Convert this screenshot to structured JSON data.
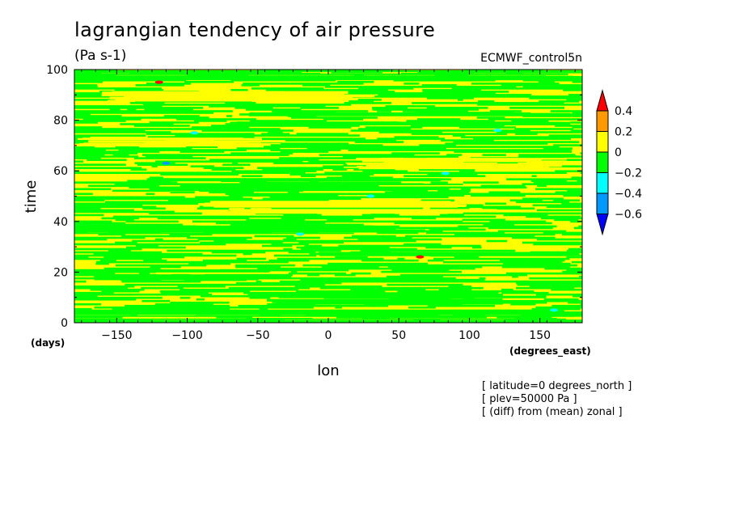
{
  "chart_data": {
    "type": "heatmap",
    "title": "lagrangian tendency of air pressure",
    "units": "(Pa s-1)",
    "source": "ECMWF_control5n",
    "xlabel": "lon",
    "ylabel": "time",
    "x_unit": "(degrees_east)",
    "y_unit": "(days)",
    "xlim": [
      -180,
      180
    ],
    "ylim": [
      0,
      100
    ],
    "x_ticks": [
      -150,
      -100,
      -50,
      0,
      50,
      100,
      150
    ],
    "y_ticks": [
      0,
      20,
      40,
      60,
      80,
      100
    ],
    "colorbar": {
      "levels": [
        "0.4",
        "0.2",
        "0",
        "-0.2",
        "-0.4",
        "-0.6"
      ],
      "colors": [
        "#ff0000",
        "#ff9900",
        "#ffff00",
        "#00ff00",
        "#00ffff",
        "#0099ff",
        "#0000ff"
      ]
    },
    "background_color": "#ffff00",
    "field_bands": [
      {
        "t": 98,
        "lon_start": -180,
        "lon_end": 180,
        "class": "green"
      },
      {
        "t": 90,
        "lon_start": -150,
        "lon_end": 40,
        "class": "yellow"
      },
      {
        "t": 81,
        "lon_start": -60,
        "lon_end": 170,
        "class": "green"
      },
      {
        "t": 72,
        "lon_start": -180,
        "lon_end": -40,
        "class": "yellow"
      },
      {
        "t": 63,
        "lon_start": 20,
        "lon_end": 180,
        "class": "yellow"
      },
      {
        "t": 55,
        "lon_start": -120,
        "lon_end": 90,
        "class": "green"
      },
      {
        "t": 46,
        "lon_start": -80,
        "lon_end": 120,
        "class": "yellow"
      },
      {
        "t": 37,
        "lon_start": -180,
        "lon_end": 60,
        "class": "green"
      },
      {
        "t": 28,
        "lon_start": 0,
        "lon_end": 180,
        "class": "green"
      },
      {
        "t": 19,
        "lon_start": -160,
        "lon_end": -30,
        "class": "green"
      },
      {
        "t": 10,
        "lon_start": -40,
        "lon_end": 150,
        "class": "green"
      },
      {
        "t": 3,
        "lon_start": -180,
        "lon_end": 180,
        "class": "green"
      }
    ],
    "extreme_spots": [
      {
        "lon": -115,
        "t": 63,
        "class": "blue"
      },
      {
        "lon": 120,
        "t": 76,
        "class": "cyan"
      },
      {
        "lon": -95,
        "t": 75,
        "class": "cyan"
      },
      {
        "lon": 83,
        "t": 59,
        "class": "cyan"
      },
      {
        "lon": -120,
        "t": 95,
        "class": "red"
      },
      {
        "lon": 65,
        "t": 26,
        "class": "red"
      },
      {
        "lon": 30,
        "t": 50,
        "class": "cyan"
      },
      {
        "lon": -20,
        "t": 35,
        "class": "cyan"
      },
      {
        "lon": 160,
        "t": 5,
        "class": "cyan"
      }
    ],
    "notes": [
      "[ latitude=0 degrees_north ]",
      "[ plev=50000 Pa ]",
      "[ (diff) from (mean) zonal ]"
    ],
    "grid": false,
    "legend": "right"
  }
}
